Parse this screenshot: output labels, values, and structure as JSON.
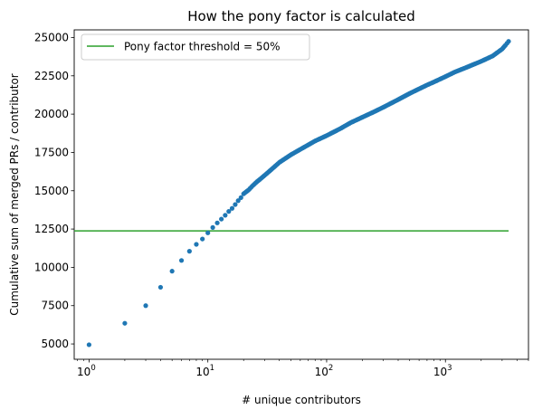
{
  "chart_data": {
    "type": "scatter",
    "title": "How the pony factor is calculated",
    "xlabel": "# unique contributors",
    "ylabel": "Cumulative sum of merged PRs / contributor",
    "x_scale": "log",
    "xlim": [
      0.75,
      5000
    ],
    "ylim": [
      4000,
      25500
    ],
    "x_ticks": [
      {
        "value": 1,
        "base": "10",
        "exp": "0"
      },
      {
        "value": 10,
        "base": "10",
        "exp": "1"
      },
      {
        "value": 100,
        "base": "10",
        "exp": "2"
      },
      {
        "value": 1000,
        "base": "10",
        "exp": "3"
      }
    ],
    "y_ticks": [
      5000,
      7500,
      10000,
      12500,
      15000,
      17500,
      20000,
      22500,
      25000
    ],
    "y_tick_labels": [
      "5000",
      "7500",
      "10000",
      "12500",
      "15000",
      "17500",
      "20000",
      "22500",
      "25000"
    ],
    "grid": false,
    "legend_position": "upper-left",
    "series": [
      {
        "type": "scatter",
        "color": "#1f77b4",
        "x": [
          1,
          2,
          3,
          4,
          5,
          6,
          7,
          8,
          9,
          10,
          11,
          12,
          13,
          14,
          15,
          16,
          17,
          18,
          19,
          20,
          22,
          24,
          26,
          28,
          30,
          35,
          40,
          50,
          60,
          80,
          100,
          130,
          160,
          200,
          250,
          300,
          400,
          500,
          600,
          700,
          800,
          1000,
          1200,
          1500,
          2000,
          2500,
          3000,
          3200,
          3400
        ],
        "y": [
          4950,
          6350,
          7500,
          8700,
          9750,
          10450,
          11050,
          11500,
          11850,
          12250,
          12600,
          12900,
          13150,
          13400,
          13650,
          13850,
          14100,
          14350,
          14550,
          14800,
          15050,
          15350,
          15600,
          15800,
          16000,
          16450,
          16850,
          17350,
          17700,
          18250,
          18600,
          19050,
          19450,
          19800,
          20150,
          20450,
          20950,
          21350,
          21650,
          21900,
          22100,
          22450,
          22750,
          23050,
          23450,
          23800,
          24250,
          24500,
          24750
        ]
      }
    ],
    "threshold": {
      "label": "Pony factor threshold = 50%",
      "y": 12380,
      "x_range": [
        0.75,
        3400
      ],
      "color": "#2ca02c"
    }
  }
}
